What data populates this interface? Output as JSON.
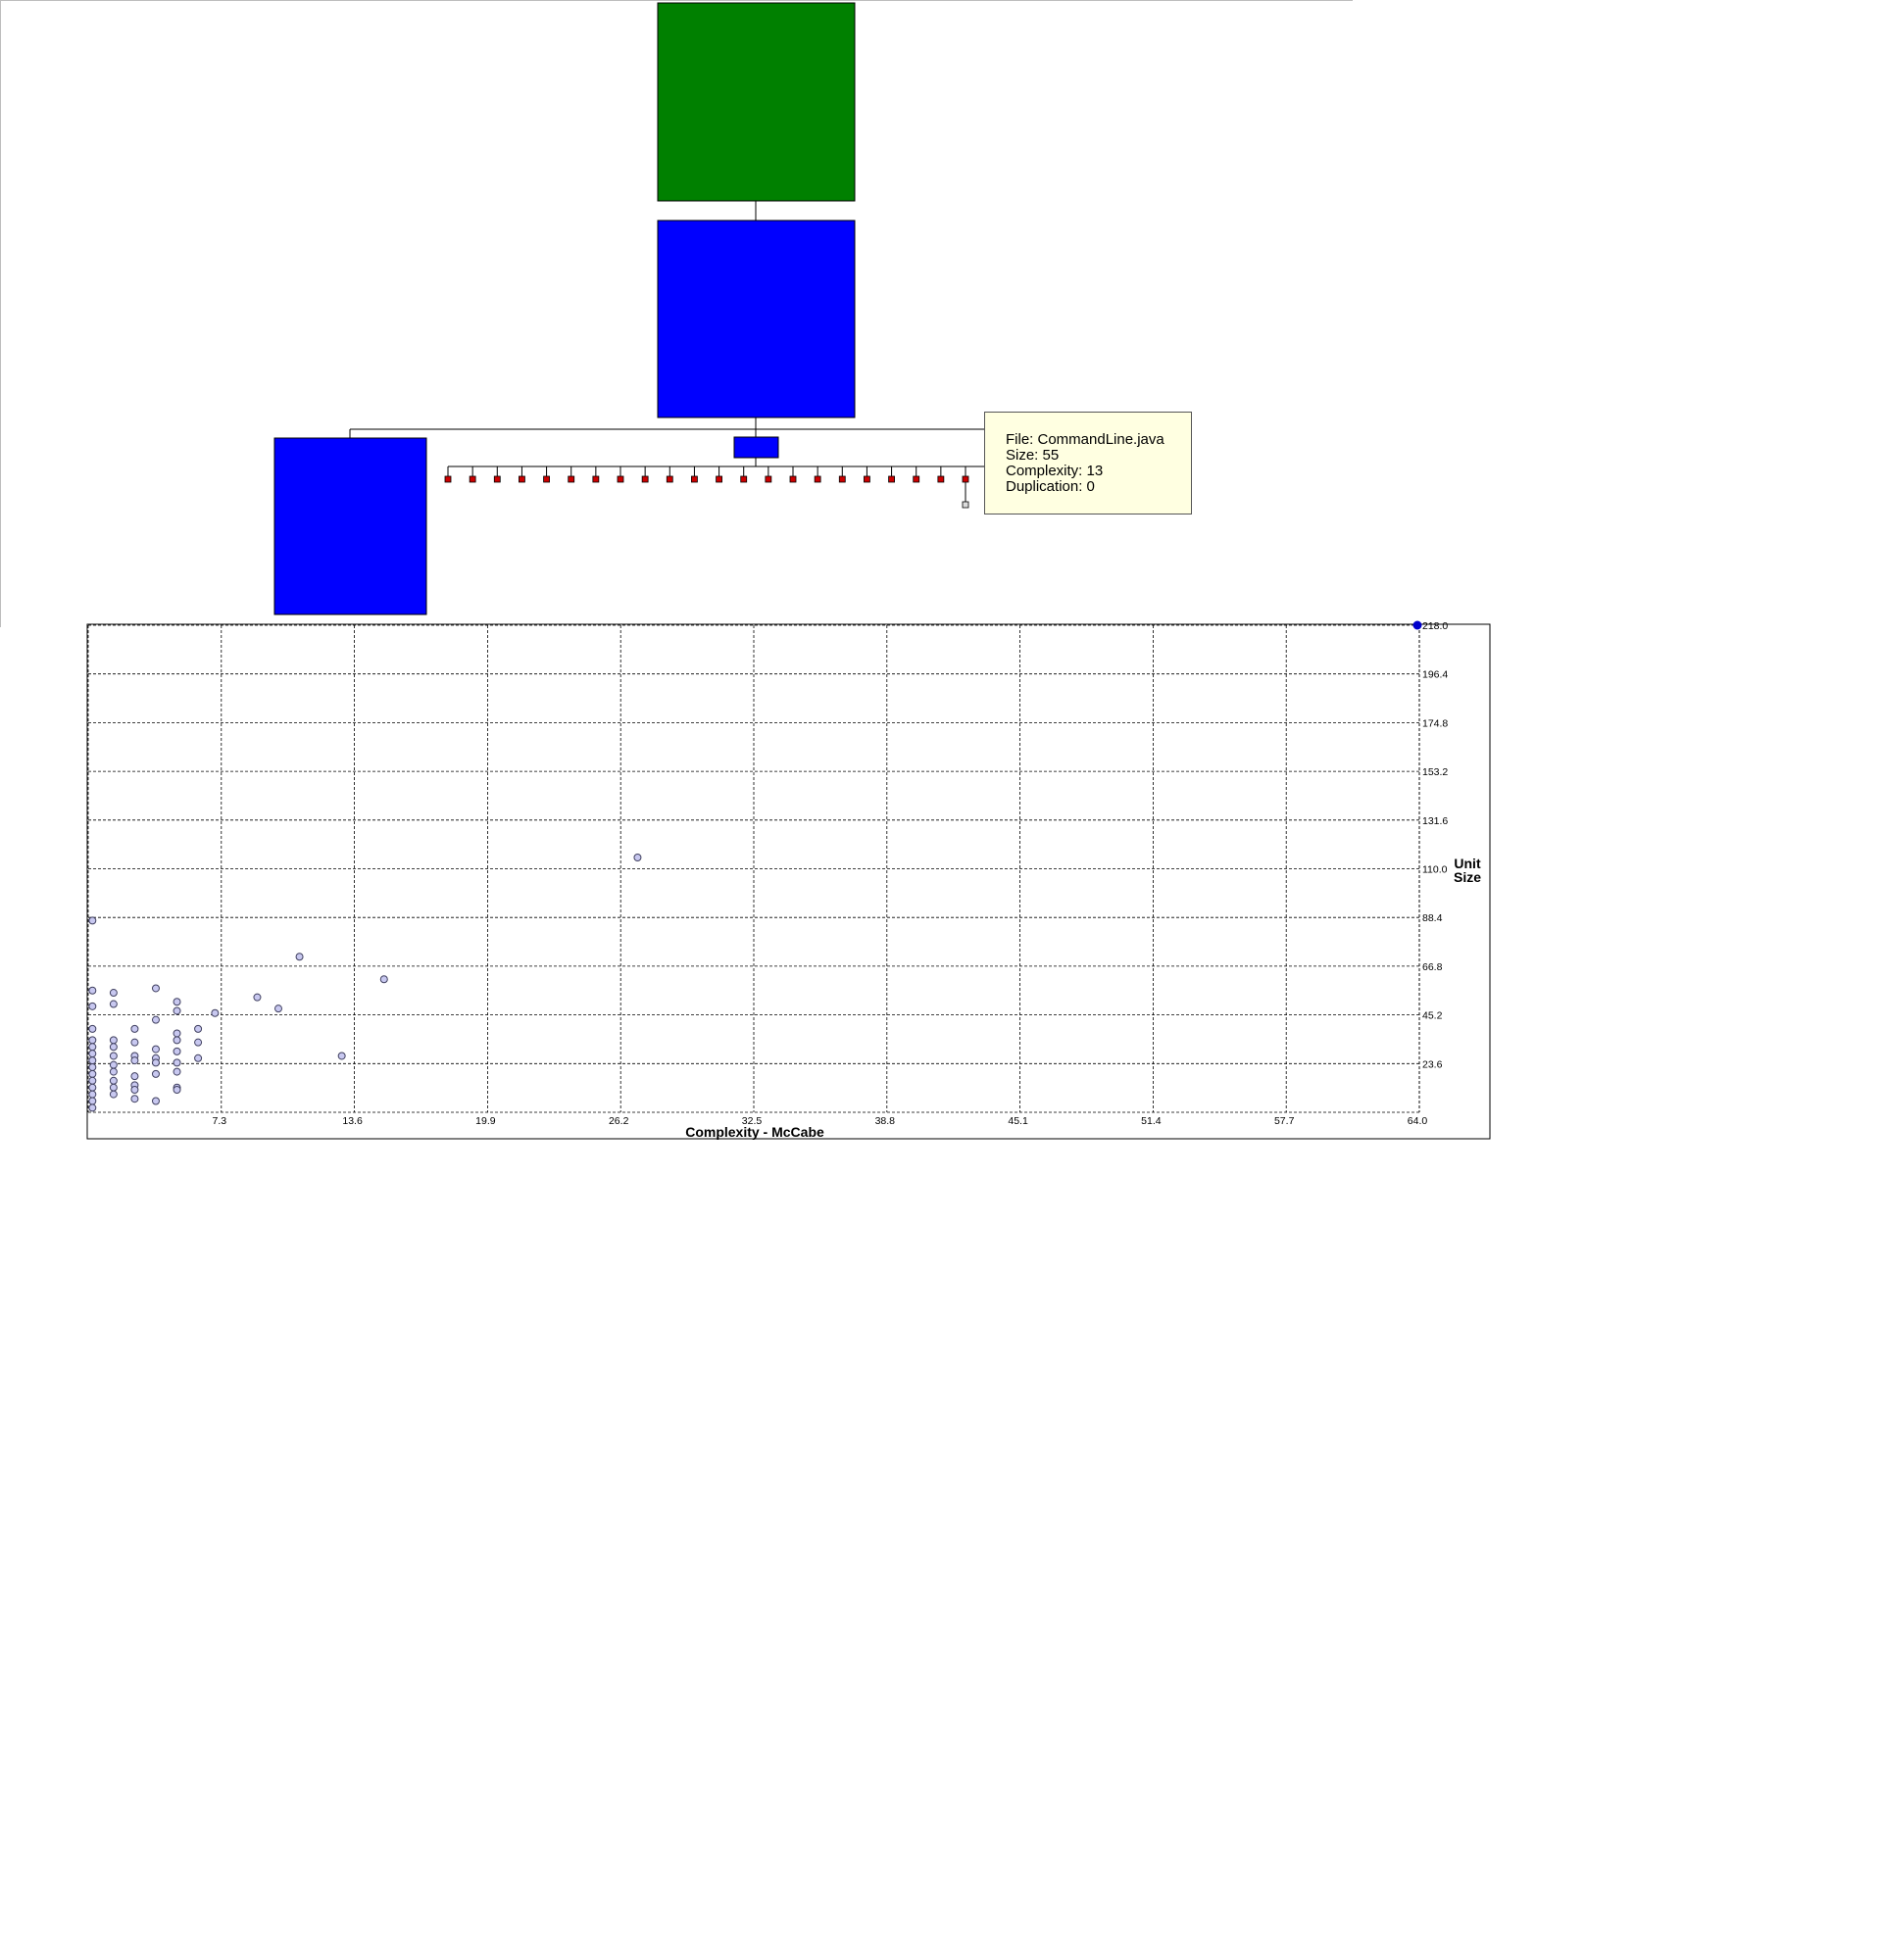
{
  "tree": {
    "colors": {
      "root": "#008000",
      "node": "#0000ff",
      "leaf": "#cc0000",
      "link": "#000000"
    }
  },
  "tooltip": {
    "file": "File: CommandLine.java",
    "size": "Size: 55",
    "complexity": "Complexity: 13",
    "duplication": "Duplication: 0"
  },
  "chart_data": {
    "type": "scatter",
    "xlabel": "Complexity - McCabe",
    "ylabel_line1": "Unit",
    "ylabel_line2": "Size",
    "xlim": [
      1.0,
      64.0
    ],
    "ylim": [
      2.0,
      218.0
    ],
    "xticks": [
      "7.3",
      "13.6",
      "19.9",
      "26.2",
      "32.5",
      "38.8",
      "45.1",
      "51.4",
      "57.7",
      "64.0"
    ],
    "yticks": [
      "23.6",
      "45.2",
      "66.8",
      "88.4",
      "110.0",
      "131.6",
      "153.2",
      "174.8",
      "196.4",
      "218.0"
    ],
    "grid": true,
    "colors": {
      "point_fill": "#c8c8f0",
      "point_stroke": "#404060",
      "highlight": "#0000cc"
    },
    "points": [
      {
        "x": 64.0,
        "y": 218.0,
        "highlight": true
      },
      {
        "x": 27.0,
        "y": 115.0
      },
      {
        "x": 11.0,
        "y": 71.0
      },
      {
        "x": 15.0,
        "y": 61.0
      },
      {
        "x": 9.0,
        "y": 53.0
      },
      {
        "x": 10.0,
        "y": 48.0
      },
      {
        "x": 7.0,
        "y": 46.0
      },
      {
        "x": 13.0,
        "y": 27.0
      },
      {
        "x": 1.2,
        "y": 87.0
      },
      {
        "x": 1.2,
        "y": 56.0
      },
      {
        "x": 1.2,
        "y": 49.0
      },
      {
        "x": 1.2,
        "y": 39.0
      },
      {
        "x": 1.2,
        "y": 34.0
      },
      {
        "x": 1.2,
        "y": 31.0
      },
      {
        "x": 1.2,
        "y": 28.0
      },
      {
        "x": 1.2,
        "y": 25.0
      },
      {
        "x": 1.2,
        "y": 22.0
      },
      {
        "x": 1.2,
        "y": 19.0
      },
      {
        "x": 1.2,
        "y": 16.0
      },
      {
        "x": 1.2,
        "y": 13.0
      },
      {
        "x": 1.2,
        "y": 10.0
      },
      {
        "x": 1.2,
        "y": 7.0
      },
      {
        "x": 1.2,
        "y": 4.0
      },
      {
        "x": 2.2,
        "y": 55.0
      },
      {
        "x": 2.2,
        "y": 50.0
      },
      {
        "x": 2.2,
        "y": 34.0
      },
      {
        "x": 2.2,
        "y": 31.0
      },
      {
        "x": 2.2,
        "y": 27.0
      },
      {
        "x": 2.2,
        "y": 23.0
      },
      {
        "x": 2.2,
        "y": 20.0
      },
      {
        "x": 2.2,
        "y": 16.0
      },
      {
        "x": 2.2,
        "y": 13.0
      },
      {
        "x": 2.2,
        "y": 10.0
      },
      {
        "x": 3.2,
        "y": 39.0
      },
      {
        "x": 3.2,
        "y": 33.0
      },
      {
        "x": 3.2,
        "y": 27.0
      },
      {
        "x": 3.2,
        "y": 25.0
      },
      {
        "x": 3.2,
        "y": 18.0
      },
      {
        "x": 3.2,
        "y": 14.0
      },
      {
        "x": 3.2,
        "y": 12.0
      },
      {
        "x": 3.2,
        "y": 8.0
      },
      {
        "x": 4.2,
        "y": 57.0
      },
      {
        "x": 4.2,
        "y": 43.0
      },
      {
        "x": 4.2,
        "y": 30.0
      },
      {
        "x": 4.2,
        "y": 26.0
      },
      {
        "x": 4.2,
        "y": 24.0
      },
      {
        "x": 4.2,
        "y": 19.0
      },
      {
        "x": 4.2,
        "y": 7.0
      },
      {
        "x": 5.2,
        "y": 51.0
      },
      {
        "x": 5.2,
        "y": 47.0
      },
      {
        "x": 5.2,
        "y": 37.0
      },
      {
        "x": 5.2,
        "y": 34.0
      },
      {
        "x": 5.2,
        "y": 29.0
      },
      {
        "x": 5.2,
        "y": 24.0
      },
      {
        "x": 5.2,
        "y": 20.0
      },
      {
        "x": 5.2,
        "y": 13.0
      },
      {
        "x": 5.2,
        "y": 12.0
      },
      {
        "x": 6.2,
        "y": 39.0
      },
      {
        "x": 6.2,
        "y": 33.0
      },
      {
        "x": 6.2,
        "y": 26.0
      }
    ]
  }
}
